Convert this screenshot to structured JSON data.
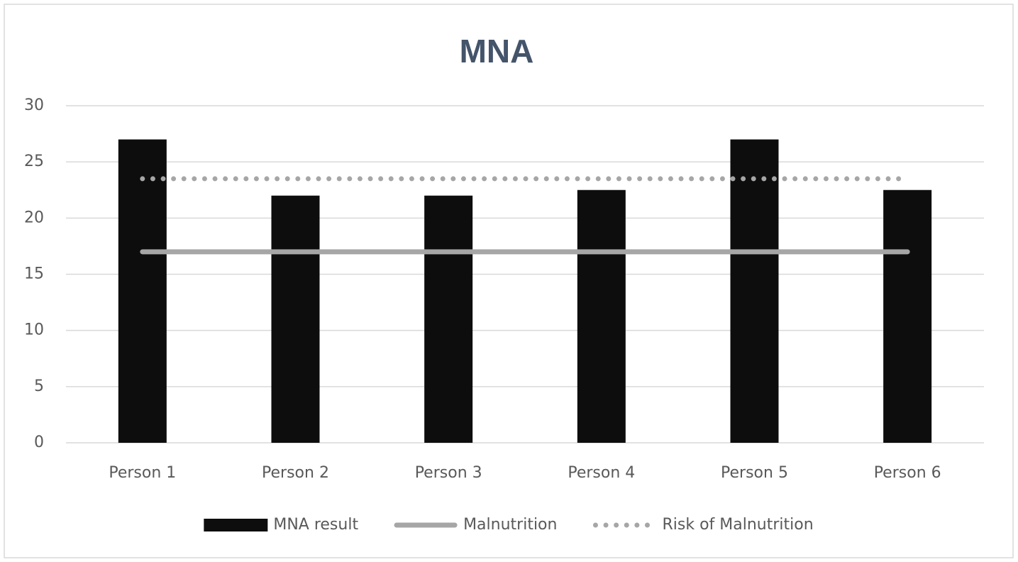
{
  "chart_data": {
    "type": "bar",
    "title": "MNA",
    "categories": [
      "Person 1",
      "Person 2",
      "Person 3",
      "Person 4",
      "Person 5",
      "Person 6"
    ],
    "series": [
      {
        "name": "MNA result",
        "type": "bar",
        "color": "#0d0d0d",
        "values": [
          27,
          22,
          22,
          22.5,
          27,
          22.5
        ]
      },
      {
        "name": "Malnutrition",
        "type": "line",
        "style": "solid",
        "color": "#a6a6a6",
        "values": [
          17,
          17,
          17,
          17,
          17,
          17
        ]
      },
      {
        "name": "Risk of Malnutrition",
        "type": "line",
        "style": "dotted",
        "color": "#a6a6a6",
        "values": [
          23.5,
          23.5,
          23.5,
          23.5,
          23.5,
          23.5
        ]
      }
    ],
    "ylim": [
      0,
      30
    ],
    "yticks": [
      0,
      5,
      10,
      15,
      20,
      25,
      30
    ],
    "grid": true,
    "legend": "bottom"
  }
}
